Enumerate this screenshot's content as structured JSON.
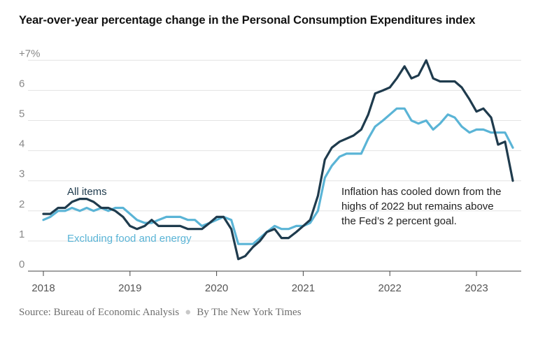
{
  "chart_data": {
    "type": "line",
    "title": "Year-over-year percentage change in the Personal Consumption Expenditures index",
    "ylim": [
      0,
      7
    ],
    "y_ticks": [
      "0",
      "1",
      "2",
      "3",
      "4",
      "5",
      "6",
      "+7%"
    ],
    "x_ticks": [
      "2018",
      "2019",
      "2020",
      "2021",
      "2022",
      "2023"
    ],
    "xlim": [
      2018.0,
      2023.42
    ],
    "series": [
      {
        "name": "All items",
        "color": "#1f3b4d",
        "x": [
          2018.0,
          2018.08,
          2018.17,
          2018.25,
          2018.33,
          2018.42,
          2018.5,
          2018.58,
          2018.67,
          2018.75,
          2018.83,
          2018.92,
          2019.0,
          2019.08,
          2019.17,
          2019.25,
          2019.33,
          2019.42,
          2019.5,
          2019.58,
          2019.67,
          2019.75,
          2019.83,
          2019.92,
          2020.0,
          2020.08,
          2020.17,
          2020.25,
          2020.33,
          2020.42,
          2020.5,
          2020.58,
          2020.67,
          2020.75,
          2020.83,
          2020.92,
          2021.0,
          2021.08,
          2021.17,
          2021.25,
          2021.33,
          2021.42,
          2021.5,
          2021.58,
          2021.67,
          2021.75,
          2021.83,
          2021.92,
          2022.0,
          2022.08,
          2022.17,
          2022.25,
          2022.33,
          2022.42,
          2022.5,
          2022.58,
          2022.67,
          2022.75,
          2022.83,
          2022.92,
          2023.0,
          2023.08,
          2023.17,
          2023.25,
          2023.33,
          2023.42
        ],
        "values": [
          1.9,
          1.9,
          2.1,
          2.1,
          2.3,
          2.4,
          2.4,
          2.3,
          2.1,
          2.1,
          2.0,
          1.8,
          1.5,
          1.4,
          1.5,
          1.7,
          1.5,
          1.5,
          1.5,
          1.5,
          1.4,
          1.4,
          1.4,
          1.6,
          1.8,
          1.8,
          1.4,
          0.4,
          0.5,
          0.8,
          1.0,
          1.3,
          1.4,
          1.1,
          1.1,
          1.3,
          1.5,
          1.7,
          2.5,
          3.7,
          4.1,
          4.3,
          4.4,
          4.5,
          4.7,
          5.2,
          5.9,
          6.0,
          6.1,
          6.4,
          6.8,
          6.4,
          6.5,
          7.0,
          6.4,
          6.3,
          6.3,
          6.3,
          6.1,
          5.7,
          5.3,
          5.4,
          5.1,
          4.2,
          4.3,
          3.0
        ]
      },
      {
        "name": "Excluding food and energy",
        "color": "#5ab4d6",
        "x": [
          2018.0,
          2018.08,
          2018.17,
          2018.25,
          2018.33,
          2018.42,
          2018.5,
          2018.58,
          2018.67,
          2018.75,
          2018.83,
          2018.92,
          2019.0,
          2019.08,
          2019.17,
          2019.25,
          2019.33,
          2019.42,
          2019.5,
          2019.58,
          2019.67,
          2019.75,
          2019.83,
          2019.92,
          2020.0,
          2020.08,
          2020.17,
          2020.25,
          2020.33,
          2020.42,
          2020.5,
          2020.58,
          2020.67,
          2020.75,
          2020.83,
          2020.92,
          2021.0,
          2021.08,
          2021.17,
          2021.25,
          2021.33,
          2021.42,
          2021.5,
          2021.58,
          2021.67,
          2021.75,
          2021.83,
          2021.92,
          2022.0,
          2022.08,
          2022.17,
          2022.25,
          2022.33,
          2022.42,
          2022.5,
          2022.58,
          2022.67,
          2022.75,
          2022.83,
          2022.92,
          2023.0,
          2023.08,
          2023.17,
          2023.25,
          2023.33,
          2023.42
        ],
        "values": [
          1.7,
          1.8,
          2.0,
          2.0,
          2.1,
          2.0,
          2.1,
          2.0,
          2.1,
          2.0,
          2.1,
          2.1,
          1.9,
          1.7,
          1.6,
          1.6,
          1.7,
          1.8,
          1.8,
          1.8,
          1.7,
          1.7,
          1.5,
          1.6,
          1.7,
          1.8,
          1.7,
          0.9,
          0.9,
          0.9,
          1.1,
          1.3,
          1.5,
          1.4,
          1.4,
          1.5,
          1.5,
          1.6,
          2.0,
          3.1,
          3.5,
          3.8,
          3.9,
          3.9,
          3.9,
          4.4,
          4.8,
          5.0,
          5.2,
          5.4,
          5.4,
          5.0,
          4.9,
          5.0,
          4.7,
          4.9,
          5.2,
          5.1,
          4.8,
          4.6,
          4.7,
          4.7,
          4.6,
          4.6,
          4.6,
          4.1
        ]
      }
    ],
    "labels": {
      "all_items": "All items",
      "core": "Excluding food and energy"
    },
    "annotation": [
      "Inflation has cooled down from the",
      "highs of 2022 but remains above",
      "the Fed’s 2 percent goal."
    ]
  },
  "footer": {
    "source": "Source: Bureau of Economic Analysis",
    "credit": "By The New York Times"
  }
}
